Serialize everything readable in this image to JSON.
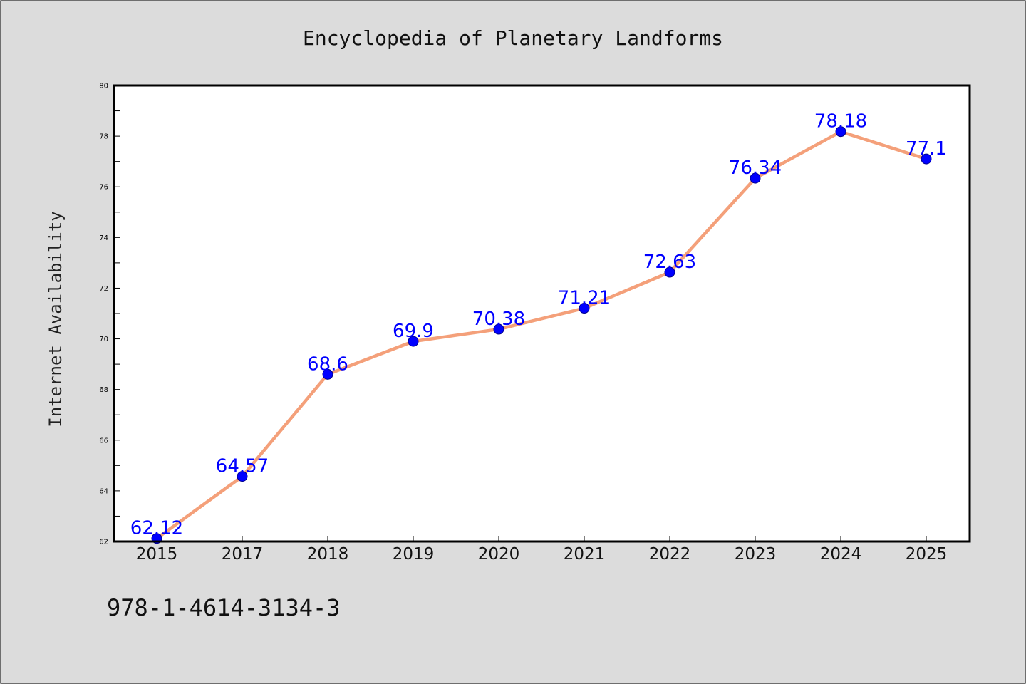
{
  "chart_data": {
    "type": "line",
    "title": "Encyclopedia of Planetary Landforms",
    "xlabel": "",
    "ylabel": "Internet Availability",
    "categories": [
      "2015",
      "2017",
      "2018",
      "2019",
      "2020",
      "2021",
      "2022",
      "2023",
      "2024",
      "2025"
    ],
    "series": [
      {
        "values": [
          62.12,
          64.57,
          68.6,
          69.9,
          70.38,
          71.21,
          72.63,
          76.34,
          78.18,
          77.1
        ],
        "labels": [
          "62.12",
          "64.57",
          "68.6",
          "69.9",
          "70.38",
          "71.21",
          "72.63",
          "76.34",
          "78.18",
          "77.1"
        ],
        "line_color": "#f4a07a",
        "marker_color": "#0000ff",
        "label_color": "#0000ff"
      }
    ],
    "ylim": [
      62,
      80
    ],
    "yticks": [
      "62",
      "64",
      "66",
      "68",
      "70",
      "72",
      "74",
      "76",
      "78",
      "80"
    ],
    "grid": false,
    "legend": "none",
    "footer_text": "978-1-4614-3134-3",
    "background_color": "#dcdcdc",
    "plot_background_color": "#ffffff"
  }
}
